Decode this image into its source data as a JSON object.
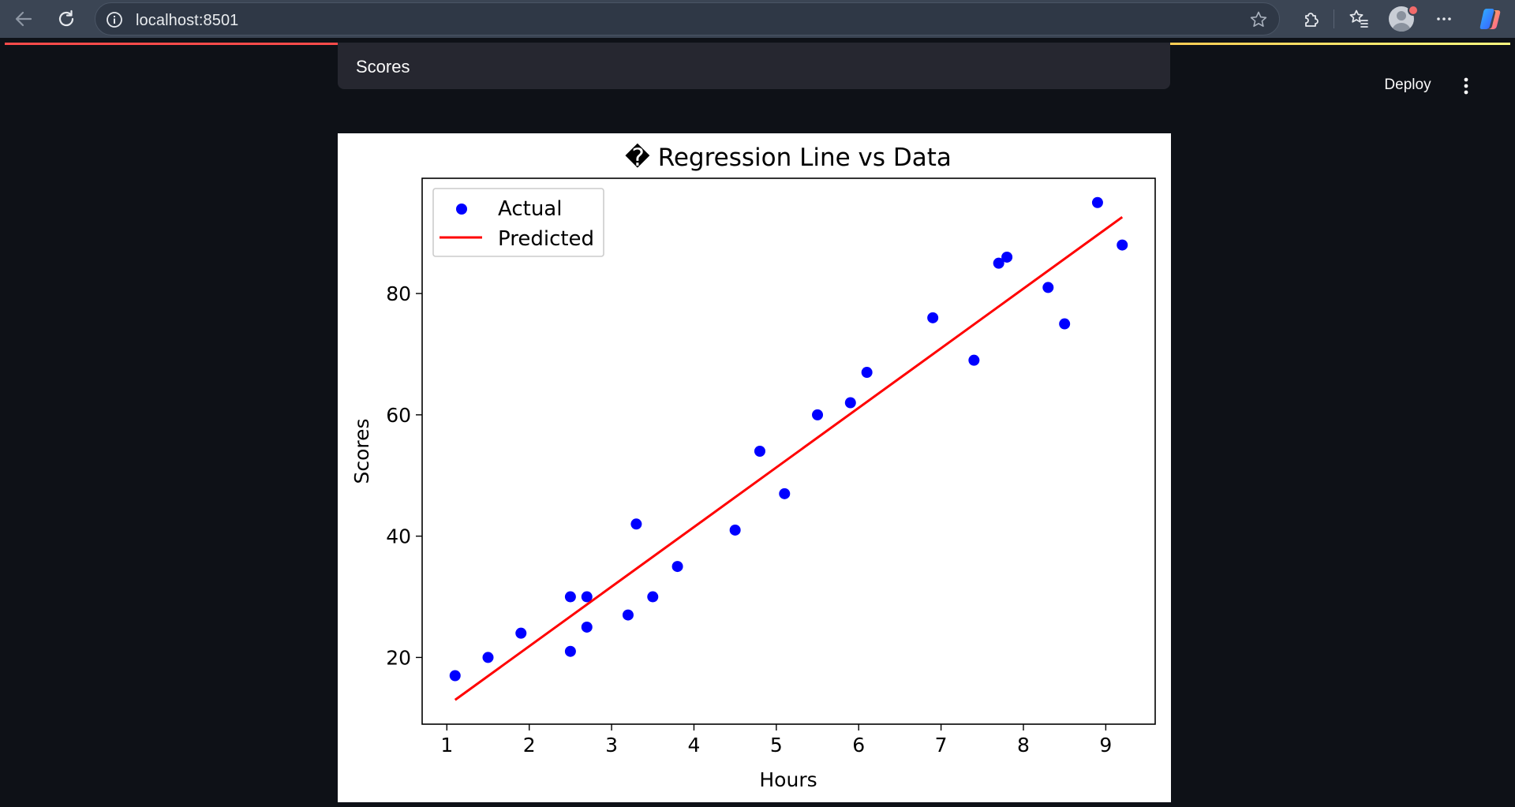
{
  "browser": {
    "url": "localhost:8501"
  },
  "app": {
    "deploy_label": "Deploy",
    "select": {
      "value": "Scores"
    }
  },
  "chart_data": {
    "type": "scatter",
    "title": "� Regression Line vs Data",
    "xlabel": "Hours",
    "ylabel": "Scores",
    "xlim": [
      0.7,
      9.6
    ],
    "ylim": [
      9,
      99
    ],
    "xticks": [
      1,
      2,
      3,
      4,
      5,
      6,
      7,
      8,
      9
    ],
    "yticks": [
      20,
      40,
      60,
      80
    ],
    "legend_position": "upper-left",
    "series": [
      {
        "name": "Actual",
        "kind": "scatter",
        "color": "#0000ff",
        "x": [
          1.1,
          1.5,
          1.9,
          2.5,
          2.5,
          2.7,
          2.7,
          3.2,
          3.3,
          3.5,
          3.8,
          4.5,
          4.8,
          5.1,
          5.5,
          5.9,
          6.1,
          6.9,
          7.4,
          7.7,
          7.8,
          8.3,
          8.5,
          8.9,
          9.2
        ],
        "y": [
          17,
          20,
          24,
          21,
          30,
          25,
          30,
          27,
          42,
          30,
          35,
          41,
          54,
          47,
          60,
          62,
          67,
          76,
          69,
          85,
          86,
          81,
          75,
          95,
          88
        ]
      },
      {
        "name": "Predicted",
        "kind": "line",
        "color": "#ff0000",
        "x": [
          1.1,
          9.2
        ],
        "y": [
          13,
          92.6
        ]
      }
    ]
  }
}
